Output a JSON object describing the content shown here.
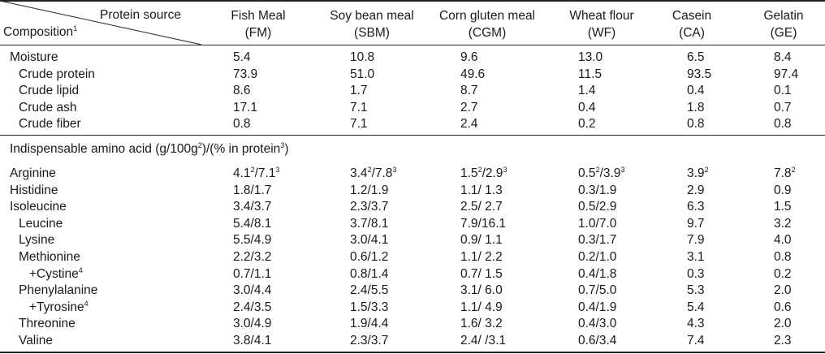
{
  "header": {
    "protein_source": "Protein source",
    "composition": "Composition",
    "composition_sup": "1",
    "columns": [
      {
        "name": "Fish Meal",
        "abbr": "(FM)"
      },
      {
        "name": "Soy bean meal",
        "abbr": "(SBM)"
      },
      {
        "name": "Corn gluten meal",
        "abbr": "(CGM)"
      },
      {
        "name": "Wheat flour",
        "abbr": "(WF)"
      },
      {
        "name": "Casein",
        "abbr": "(CA)"
      },
      {
        "name": "Gelatin",
        "abbr": "(GE)"
      }
    ]
  },
  "proximate": [
    {
      "label": "Moisture",
      "indent": 0,
      "values": [
        "5.4",
        "10.8",
        "9.6",
        "13.0",
        "6.5",
        "8.4"
      ]
    },
    {
      "label": "Crude protein",
      "indent": 1,
      "values": [
        "73.9",
        "51.0",
        "49.6",
        "11.5",
        "93.5",
        "97.4"
      ]
    },
    {
      "label": "Crude lipid",
      "indent": 1,
      "values": [
        "8.6",
        "1.7",
        "8.7",
        "1.4",
        "0.4",
        "0.1"
      ]
    },
    {
      "label": "Crude ash",
      "indent": 1,
      "values": [
        "17.1",
        "7.1",
        "2.7",
        "0.4",
        "1.8",
        "0.7"
      ]
    },
    {
      "label": "Crude fiber",
      "indent": 1,
      "values": [
        "0.8",
        "7.1",
        "2.4",
        "0.2",
        "0.8",
        "0.8"
      ]
    }
  ],
  "amino_section": {
    "title_a": "Indispensable amino acid (g/100g",
    "title_sup1": "2",
    "title_b": ")/(% in protein",
    "title_sup2": "3",
    "title_c": ")"
  },
  "amino": [
    {
      "label": "Arginine",
      "label_sup": "",
      "indent": 0,
      "values": [
        {
          "a": "4.1",
          "sa": "2",
          "b": "/7.1",
          "sb": "3"
        },
        {
          "a": "3.4",
          "sa": "2",
          "b": "/7.8",
          "sb": "3"
        },
        {
          "a": "1.5",
          "sa": "2",
          "b": "/2.9",
          "sb": "3"
        },
        {
          "a": "0.5",
          "sa": "2",
          "b": "/3.9",
          "sb": "3"
        },
        {
          "a": "3.9",
          "sa": "2",
          "b": "",
          "sb": ""
        },
        {
          "a": "7.8",
          "sa": "2",
          "b": "",
          "sb": ""
        }
      ]
    },
    {
      "label": "Histidine",
      "label_sup": "",
      "indent": 0,
      "values": [
        "1.8/1.7",
        "1.2/1.9",
        "1.1/ 1.3",
        "0.3/1.9",
        "2.9",
        "0.9"
      ]
    },
    {
      "label": "Isoleucine",
      "label_sup": "",
      "indent": 0,
      "values": [
        "3.4/3.7",
        "2.3/3.7",
        "2.5/ 2.7",
        "0.5/2.9",
        "6.3",
        "1.5"
      ]
    },
    {
      "label": "Leucine",
      "label_sup": "",
      "indent": 1,
      "values": [
        "5.4/8.1",
        "3.7/8.1",
        "7.9/16.1",
        "1.0/7.0",
        "9.7",
        "3.2"
      ]
    },
    {
      "label": "Lysine",
      "label_sup": "",
      "indent": 1,
      "values": [
        "5.5/4.9",
        "3.0/4.1",
        "0.9/ 1.1",
        "0.3/1.7",
        "7.9",
        "4.0"
      ]
    },
    {
      "label": "Methionine",
      "label_sup": "",
      "indent": 1,
      "values": [
        "2.2/3.2",
        "0.6/1.2",
        "1.1/ 2.2",
        "0.2/1.0",
        "3.1",
        "0.8"
      ]
    },
    {
      "label": "+Cystine",
      "label_sup": "4",
      "indent": 2,
      "values": [
        "0.7/1.1",
        "0.8/1.4",
        "0.7/ 1.5",
        "0.4/1.8",
        "0.3",
        "0.2"
      ]
    },
    {
      "label": "Phenylalanine",
      "label_sup": "",
      "indent": 1,
      "values": [
        "3.0/4.4",
        "2.4/5.5",
        "3.1/ 6.0",
        "0.7/5.0",
        "5.3",
        "2.0"
      ]
    },
    {
      "label": "+Tyrosine",
      "label_sup": "4",
      "indent": 2,
      "values": [
        "2.4/3.5",
        "1.5/3.3",
        "1.1/ 4.9",
        "0.4/1.9",
        "5.4",
        "0.6"
      ]
    },
    {
      "label": "Threonine",
      "label_sup": "",
      "indent": 1,
      "values": [
        "3.0/4.9",
        "1.9/4.4",
        "1.6/ 3.2",
        "0.4/3.0",
        "4.3",
        "2.0"
      ]
    },
    {
      "label": "Valine",
      "label_sup": "",
      "indent": 1,
      "values": [
        "3.8/4.1",
        "2.3/3.7",
        "2.4/ /3.1",
        "0.6/3.4",
        "7.4",
        "2.3"
      ]
    }
  ]
}
